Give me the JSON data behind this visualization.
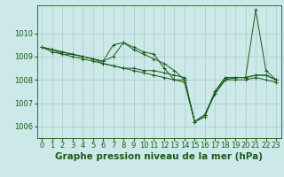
{
  "background_color": "#cce8e8",
  "plot_bg_color": "#cce8e8",
  "grid_color": "#aacccc",
  "line_color": "#1a5c1a",
  "xlabel": "Graphe pression niveau de la mer (hPa)",
  "xlabel_fontsize": 7.5,
  "tick_fontsize": 6,
  "xlim": [
    -0.5,
    23.5
  ],
  "ylim": [
    1005.5,
    1011.2
  ],
  "yticks": [
    1006,
    1007,
    1008,
    1009,
    1010
  ],
  "xticks": [
    0,
    1,
    2,
    3,
    4,
    5,
    6,
    7,
    8,
    9,
    10,
    11,
    12,
    13,
    14,
    15,
    16,
    17,
    18,
    19,
    20,
    21,
    22,
    23
  ],
  "series": [
    [
      1009.4,
      1009.3,
      1009.1,
      1009.1,
      1009.0,
      1008.9,
      1008.8,
      1009.0,
      1009.6,
      1009.4,
      1009.2,
      1009.1,
      1008.5,
      1008.0,
      1008.0,
      1006.2,
      1006.4,
      1007.5,
      1008.1,
      1008.1,
      1008.1,
      1011.0,
      1008.4,
      1008.0
    ],
    [
      1009.4,
      1009.3,
      1009.2,
      1009.1,
      1009.0,
      1008.9,
      1008.8,
      1009.5,
      1009.6,
      1009.3,
      1009.1,
      1008.9,
      1008.7,
      1008.4,
      1008.0,
      1006.2,
      1006.5,
      1007.5,
      1008.1,
      1008.1,
      1008.1,
      1008.2,
      1008.2,
      1008.0
    ],
    [
      1009.4,
      1009.3,
      1009.2,
      1009.1,
      1009.0,
      1008.9,
      1008.7,
      1008.6,
      1008.5,
      1008.5,
      1008.4,
      1008.4,
      1008.3,
      1008.2,
      1008.1,
      1006.2,
      1006.5,
      1007.4,
      1008.0,
      1008.1,
      1008.1,
      1008.2,
      1008.2,
      1008.0
    ],
    [
      1009.4,
      1009.2,
      1009.1,
      1009.0,
      1008.9,
      1008.8,
      1008.7,
      1008.6,
      1008.5,
      1008.4,
      1008.3,
      1008.2,
      1008.1,
      1008.0,
      1007.9,
      1006.2,
      1006.5,
      1007.4,
      1008.0,
      1008.0,
      1008.0,
      1008.1,
      1008.0,
      1007.9
    ]
  ]
}
